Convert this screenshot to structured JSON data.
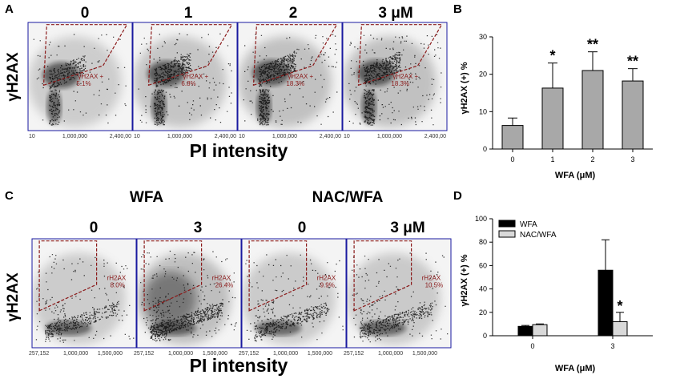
{
  "panels": {
    "A": {
      "letter": "A",
      "doses": [
        "0",
        "1",
        "2",
        "3 μM"
      ],
      "ylabel": "γH2AX",
      "xlabel": "PI intensity",
      "x_ticks": [
        "10",
        "1,000,000",
        "2,400,00"
      ],
      "gates": [
        {
          "name": "γH2AX +",
          "pct": "5.1%"
        },
        {
          "name": "γH2AX +",
          "pct": "6.8%"
        },
        {
          "name": "γH2AX +",
          "pct": "18.3%"
        },
        {
          "name": "γH2AX +",
          "pct": "18.3%"
        }
      ]
    },
    "C": {
      "letter": "C",
      "group_labels": [
        "WFA",
        "NAC/WFA"
      ],
      "doses": [
        "0",
        "3",
        "0",
        "3 μM"
      ],
      "ylabel": "γH2AX",
      "xlabel": "PI intensity",
      "x_ticks": [
        "257,152",
        "1,000,000",
        "1,500,000",
        "2,028,7"
      ],
      "gates": [
        {
          "name": "rH2AX",
          "pct": "8.0%"
        },
        {
          "name": "rH2AX",
          "pct": "26.4%"
        },
        {
          "name": "rH2AX",
          "pct": "9.9%"
        },
        {
          "name": "rH2AX",
          "pct": "10.5%"
        }
      ]
    },
    "B": {
      "letter": "B"
    },
    "D": {
      "letter": "D"
    }
  },
  "chart_data": [
    {
      "id": "B",
      "type": "bar",
      "ylabel": "γH2AX (+) %",
      "xlabel": "WFA (μM)",
      "categories": [
        "0",
        "1",
        "2",
        "3"
      ],
      "values": [
        6.3,
        16.3,
        21.0,
        18.2
      ],
      "errors": [
        2.0,
        6.7,
        5.0,
        3.3
      ],
      "significance": [
        "",
        "*",
        "**",
        "**"
      ],
      "ylim": [
        0,
        30
      ],
      "yticks": [
        0,
        10,
        20,
        30
      ],
      "bar_color": "#a8a8a8"
    },
    {
      "id": "D",
      "type": "bar",
      "ylabel": "γH2AX (+) %",
      "xlabel": "WFA (μM)",
      "categories": [
        "0",
        "3"
      ],
      "series": [
        {
          "name": "WFA",
          "values": [
            8.0,
            56.0
          ],
          "errors": [
            0.8,
            26.0
          ],
          "color": "#000000"
        },
        {
          "name": "NAC/WFA",
          "values": [
            9.5,
            12.0
          ],
          "errors": [
            0.6,
            8.0
          ],
          "color": "#d9d9d9"
        }
      ],
      "significance": [
        [
          "",
          ""
        ],
        [
          "",
          "*"
        ]
      ],
      "ylim": [
        0,
        100
      ],
      "yticks": [
        0,
        20,
        40,
        60,
        80,
        100
      ]
    }
  ]
}
